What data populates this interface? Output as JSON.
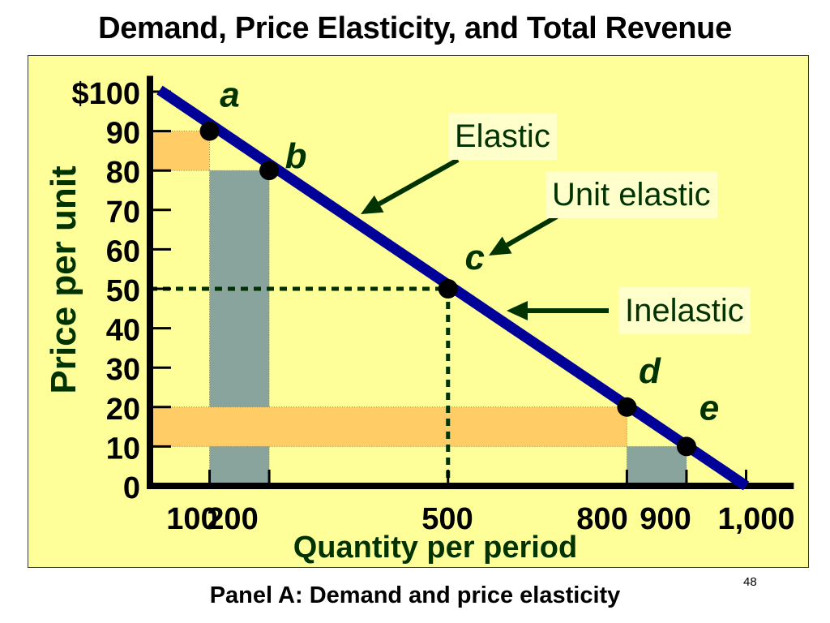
{
  "slide": {
    "title": "Demand, Price Elasticity, and Total Revenue",
    "caption": "Panel A: Demand and price elasticity",
    "page_number": "48"
  },
  "callouts": {
    "elastic": "Elastic",
    "unit_elastic": "Unit elastic",
    "inelastic": "Inelastic"
  },
  "colors": {
    "panel_background": "#ffff99",
    "demand_line": "#000099",
    "revenue_orange": "#ffcc66",
    "revenue_gray": "#7f9c9c",
    "arrow": "#003300",
    "text_dark_green": "#003300"
  },
  "chart_data": {
    "type": "line",
    "title": "",
    "xlabel": "Quantity per period",
    "ylabel": "Price per unit",
    "xlim": [
      0,
      1100
    ],
    "ylim": [
      0,
      100
    ],
    "y_ticks": [
      0,
      10,
      20,
      30,
      40,
      50,
      60,
      70,
      80,
      90,
      100
    ],
    "y_tick_labels": [
      "0",
      "10",
      "20",
      "30",
      "40",
      "50",
      "60",
      "70",
      "80",
      "90",
      "$100"
    ],
    "x_ticks": [
      100,
      200,
      500,
      800,
      900,
      1000
    ],
    "x_tick_labels": [
      "100",
      "200",
      "500",
      "800",
      "900",
      "1,000"
    ],
    "grid": false,
    "series": [
      {
        "x": [
          0,
          1000
        ],
        "y": [
          100,
          0
        ]
      }
    ],
    "points": [
      {
        "label": "a",
        "x": 100,
        "y": 90
      },
      {
        "label": "b",
        "x": 200,
        "y": 80
      },
      {
        "label": "c",
        "x": 500,
        "y": 50
      },
      {
        "label": "d",
        "x": 800,
        "y": 20
      },
      {
        "label": "e",
        "x": 900,
        "y": 10
      }
    ],
    "revenue_rects": [
      {
        "kind": "orange",
        "x0": 0,
        "x1": 100,
        "y0": 80,
        "y1": 90
      },
      {
        "kind": "gray",
        "x0": 100,
        "x1": 200,
        "y0": 0,
        "y1": 80
      },
      {
        "kind": "orange",
        "x0": 0,
        "x1": 800,
        "y0": 10,
        "y1": 20
      },
      {
        "kind": "gray",
        "x0": 800,
        "x1": 900,
        "y0": 0,
        "y1": 10
      }
    ],
    "reference_lines": [
      {
        "from": [
          0,
          50
        ],
        "to": [
          500,
          50
        ]
      },
      {
        "from": [
          500,
          50
        ],
        "to": [
          500,
          0
        ]
      }
    ]
  }
}
